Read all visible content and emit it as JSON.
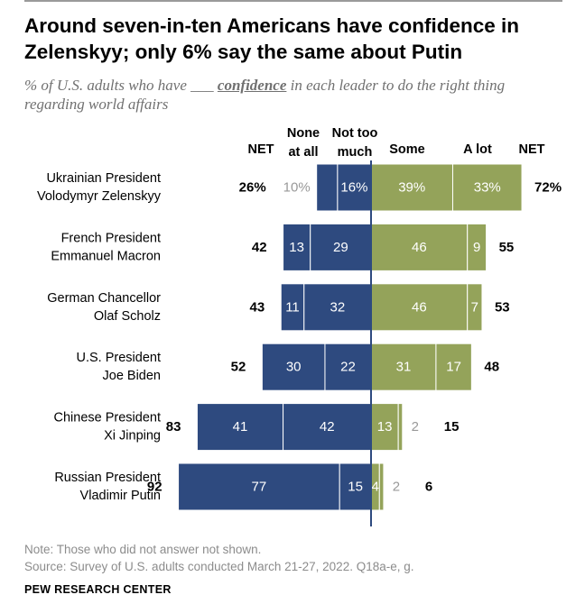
{
  "header": {
    "title": "Around seven-in-ten Americans have confidence in Zelenskyy; only 6% say the same about Putin",
    "subtitle_pre": "% of U.S. adults who have ___ ",
    "subtitle_emph": "confidence",
    "subtitle_post": " in each leader to do the right thing regarding world affairs"
  },
  "footer": {
    "note": "Note: Those who did not answer not shown.",
    "source": "Source: Survey of U.S. adults conducted March 21-27, 2022. Q18a-e, g.",
    "brand": "PEW RESEARCH CENTER"
  },
  "colors": {
    "negative": "#2e4a7f",
    "positive": "#94a35a",
    "axis": "#2e4a7f",
    "muted_text": "#999999"
  },
  "chart_data": {
    "type": "bar",
    "orientation": "horizontal-diverging",
    "column_headers": {
      "net_negative": "NET",
      "none_at_all": "None at all",
      "not_too_much": "Not too much",
      "some": "Some",
      "a_lot": "A lot",
      "net_positive": "NET"
    },
    "categories": [
      "Ukrainian President Volodymyr Zelenskyy",
      "French President Emmanuel Macron",
      "German Chancellor Olaf Scholz",
      "U.S. President Joe Biden",
      "Chinese President Xi Jinping",
      "Russian President Vladimir Putin"
    ],
    "rows": [
      {
        "line1": "Ukrainian President",
        "line2": "Volodymyr Zelenskyy",
        "none": 10,
        "not_much": 16,
        "some": 39,
        "a_lot": 33,
        "net_neg": 26,
        "net_pos": 72,
        "show_percent": true
      },
      {
        "line1": "French President",
        "line2": "Emmanuel Macron",
        "none": 13,
        "not_much": 29,
        "some": 46,
        "a_lot": 9,
        "net_neg": 42,
        "net_pos": 55,
        "show_percent": false
      },
      {
        "line1": "German Chancellor",
        "line2": "Olaf Scholz",
        "none": 11,
        "not_much": 32,
        "some": 46,
        "a_lot": 7,
        "net_neg": 43,
        "net_pos": 53,
        "show_percent": false
      },
      {
        "line1": "U.S. President",
        "line2": "Joe Biden",
        "none": 30,
        "not_much": 22,
        "some": 31,
        "a_lot": 17,
        "net_neg": 52,
        "net_pos": 48,
        "show_percent": false
      },
      {
        "line1": "Chinese President",
        "line2": "Xi Jinping",
        "none": 41,
        "not_much": 42,
        "some": 13,
        "a_lot": 2,
        "net_neg": 83,
        "net_pos": 15,
        "show_percent": false
      },
      {
        "line1": "Russian President",
        "line2": "Vladimir Putin",
        "none": 77,
        "not_much": 15,
        "some": 4,
        "a_lot": 2,
        "net_neg": 92,
        "net_pos": 6,
        "show_percent": false
      }
    ],
    "series": [
      {
        "name": "None at all"
      },
      {
        "name": "Not too much"
      },
      {
        "name": "Some"
      },
      {
        "name": "A lot"
      }
    ]
  }
}
